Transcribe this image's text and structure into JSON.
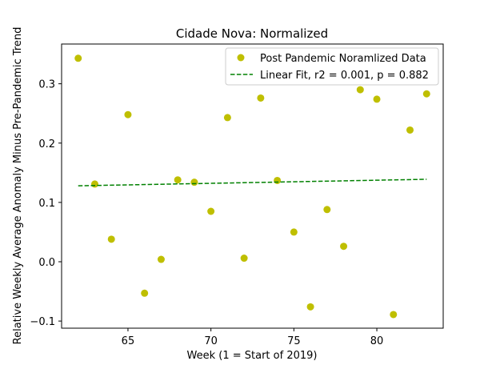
{
  "chart_data": {
    "type": "scatter",
    "title": "Cidade Nova: Normalized",
    "xlabel": "Week (1 = Start of 2019)",
    "ylabel": "Relative Weekly Average Anomaly Minus Pre-Pandemic Trend",
    "xlim": [
      61.0,
      84.0
    ],
    "ylim": [
      -0.112,
      0.367
    ],
    "xticks": [
      65,
      70,
      75,
      80
    ],
    "yticks": [
      -0.1,
      0.0,
      0.1,
      0.2,
      0.3
    ],
    "ytick_labels": [
      "−0.1",
      "0.0",
      "0.1",
      "0.2",
      "0.3"
    ],
    "legend_position": "top-right",
    "grid": false,
    "series": [
      {
        "name": "Post Pandemic Noramlized Data",
        "kind": "scatter",
        "color": "#bfbf00",
        "x": [
          62,
          63,
          64,
          65,
          66,
          67,
          68,
          69,
          70,
          71,
          72,
          73,
          74,
          75,
          76,
          77,
          78,
          79,
          80,
          81,
          82,
          83
        ],
        "y": [
          0.343,
          0.131,
          0.038,
          0.248,
          -0.053,
          0.004,
          0.138,
          0.134,
          0.085,
          0.243,
          0.006,
          0.276,
          0.137,
          0.05,
          -0.076,
          0.088,
          0.026,
          0.29,
          0.274,
          -0.089,
          0.222,
          0.283
        ]
      },
      {
        "name": "Linear Fit, r2 = 0.001, p = 0.882",
        "kind": "line",
        "style": "dashed",
        "color": "#008000",
        "x": [
          62,
          83
        ],
        "y": [
          0.128,
          0.139
        ]
      }
    ]
  }
}
